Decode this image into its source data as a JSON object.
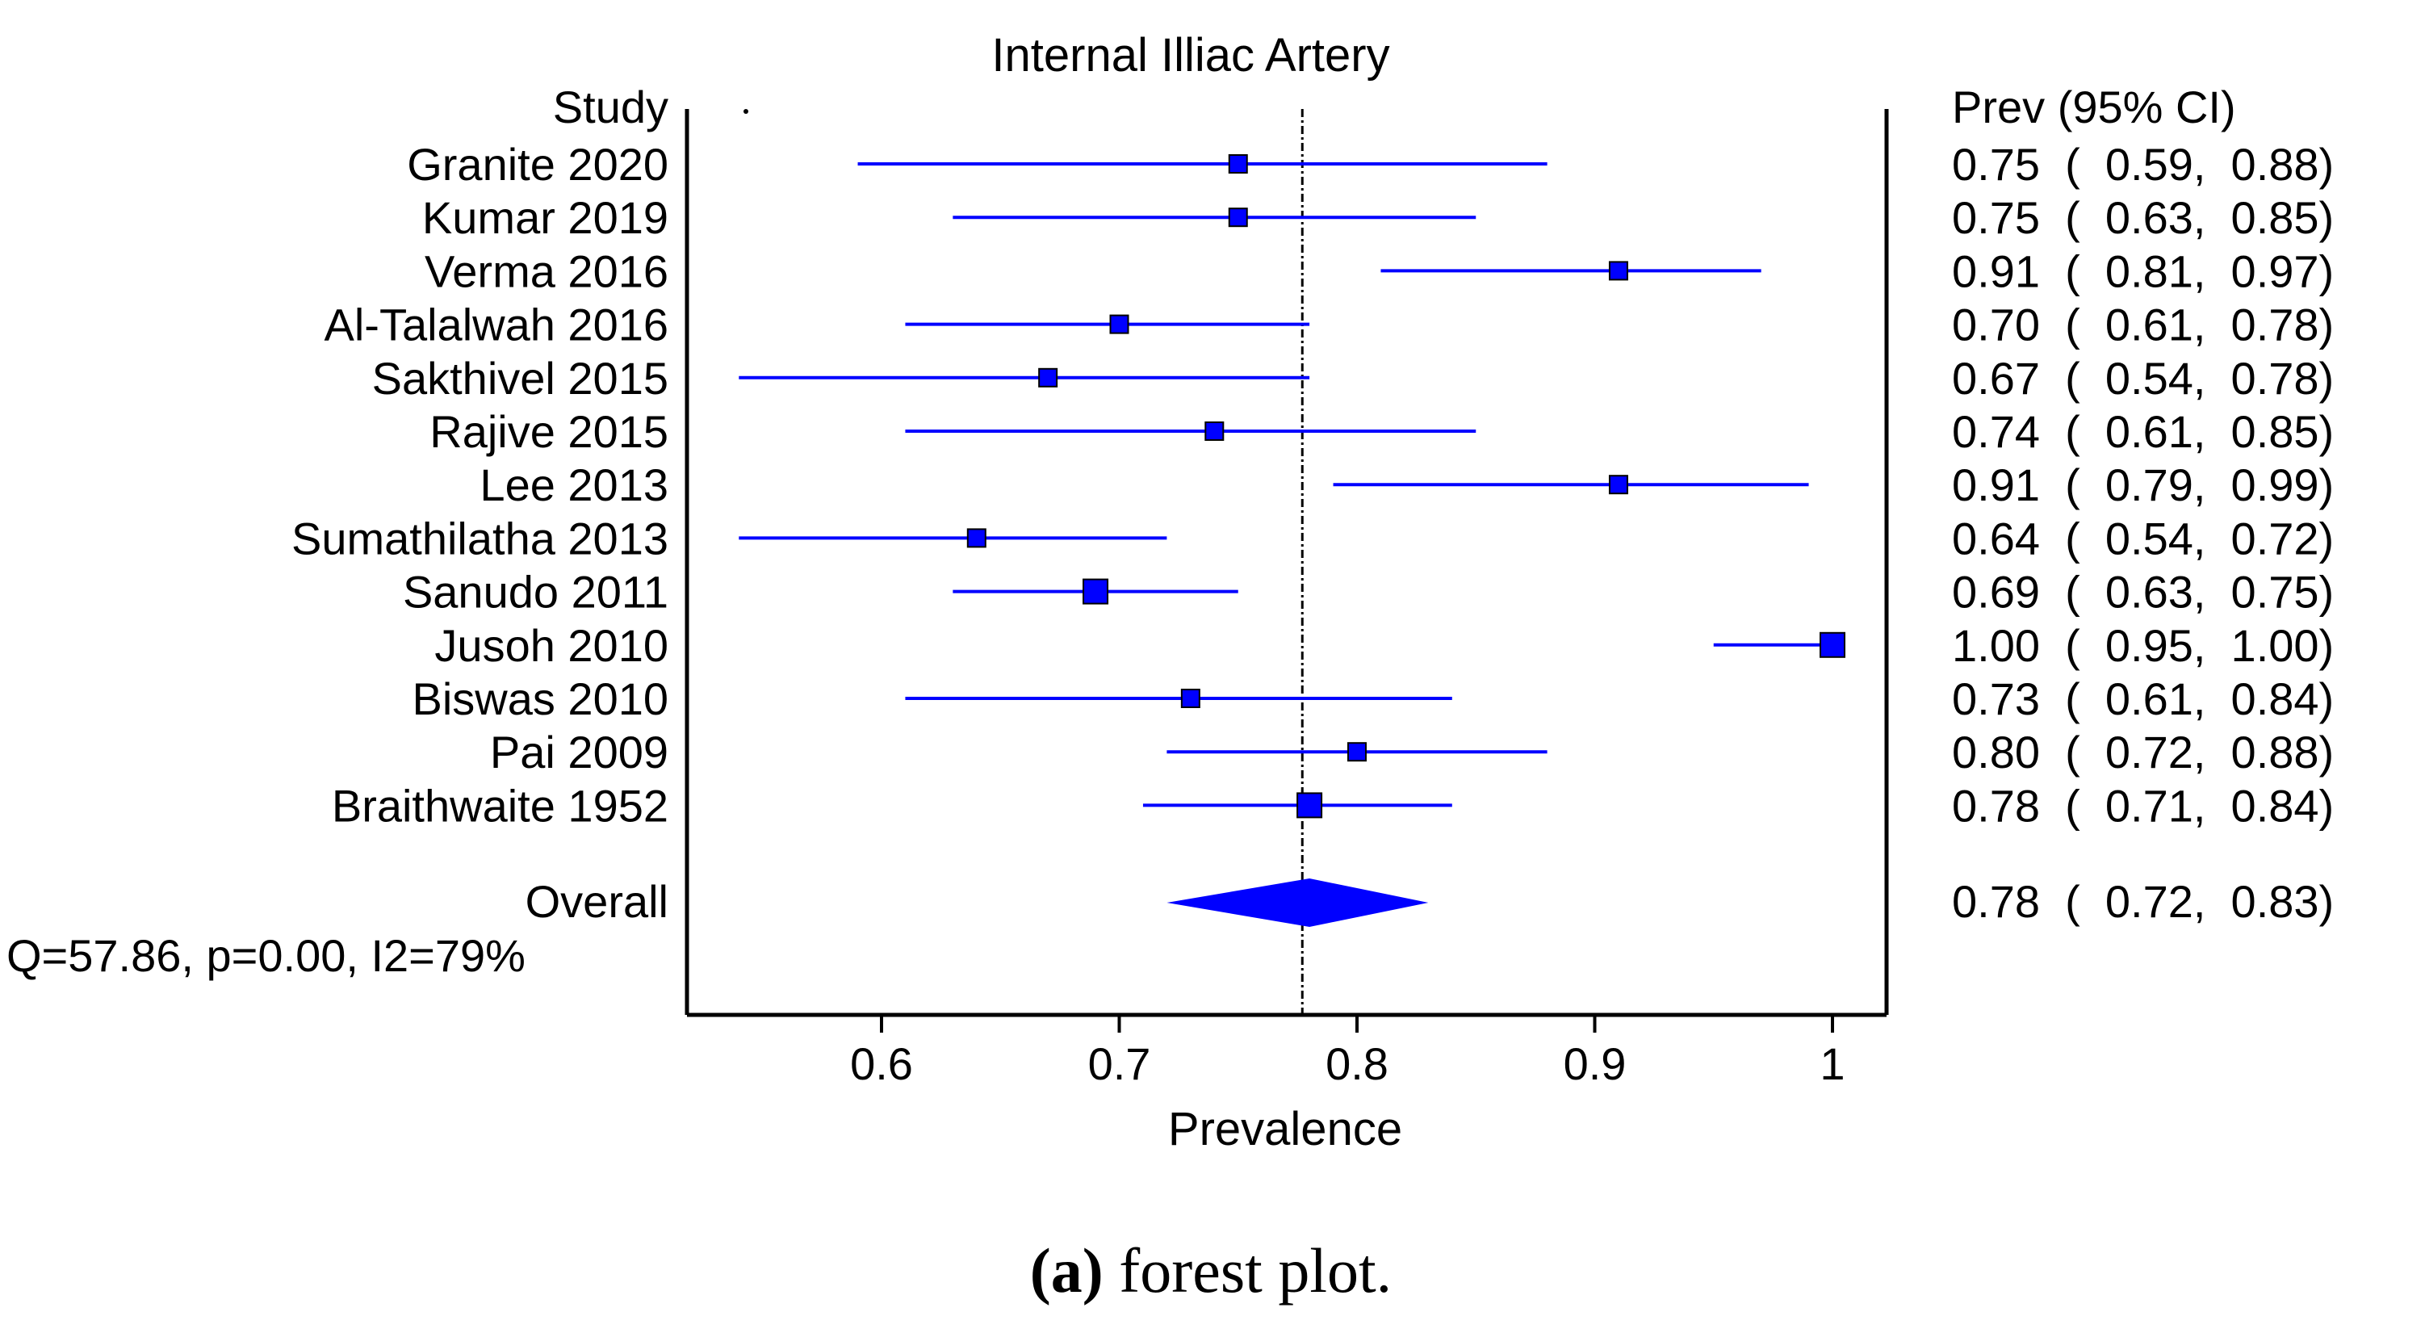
{
  "chart_data": {
    "type": "forest",
    "title": "Internal Illiac Artery",
    "left_header": "Study",
    "right_header": "Prev (95% CI)",
    "xlabel": "Prevalence",
    "xlim": [
      0.518,
      1.02
    ],
    "xticks": [
      0.6,
      0.7,
      0.8,
      0.9,
      1
    ],
    "xtick_labels": [
      "0.6",
      "0.7",
      "0.8",
      "0.9",
      "1"
    ],
    "reference_line": 0.777,
    "studies": [
      {
        "name": "Granite 2020",
        "est": 0.75,
        "lo": 0.59,
        "hi": 0.88,
        "label": "0.75  (  0.59,  0.88)"
      },
      {
        "name": "Kumar 2019",
        "est": 0.75,
        "lo": 0.63,
        "hi": 0.85,
        "label": "0.75  (  0.63,  0.85)"
      },
      {
        "name": "Verma 2016",
        "est": 0.91,
        "lo": 0.81,
        "hi": 0.97,
        "label": "0.91  (  0.81,  0.97)"
      },
      {
        "name": "Al-Talalwah 2016",
        "est": 0.7,
        "lo": 0.61,
        "hi": 0.78,
        "label": "0.70  (  0.61,  0.78)"
      },
      {
        "name": "Sakthivel 2015",
        "est": 0.67,
        "lo": 0.54,
        "hi": 0.78,
        "label": "0.67  (  0.54,  0.78)"
      },
      {
        "name": "Rajive 2015",
        "est": 0.74,
        "lo": 0.61,
        "hi": 0.85,
        "label": "0.74  (  0.61,  0.85)"
      },
      {
        "name": "Lee 2013",
        "est": 0.91,
        "lo": 0.79,
        "hi": 0.99,
        "label": "0.91  (  0.79,  0.99)"
      },
      {
        "name": "Sumathilatha 2013",
        "est": 0.64,
        "lo": 0.54,
        "hi": 0.72,
        "label": "0.64  (  0.54,  0.72)"
      },
      {
        "name": "Sanudo 2011",
        "est": 0.69,
        "lo": 0.63,
        "hi": 0.75,
        "label": "0.69  (  0.63,  0.75)"
      },
      {
        "name": "Jusoh 2010",
        "est": 1.0,
        "lo": 0.95,
        "hi": 1.0,
        "label": "1.00  (  0.95,  1.00)"
      },
      {
        "name": "Biswas 2010",
        "est": 0.73,
        "lo": 0.61,
        "hi": 0.84,
        "label": "0.73  (  0.61,  0.84)"
      },
      {
        "name": "Pai 2009",
        "est": 0.8,
        "lo": 0.72,
        "hi": 0.88,
        "label": "0.80  (  0.72,  0.88)"
      },
      {
        "name": "Braithwaite 1952",
        "est": 0.78,
        "lo": 0.71,
        "hi": 0.84,
        "label": "0.78  (  0.71,  0.84)"
      }
    ],
    "overall": {
      "name": "Overall",
      "est": 0.78,
      "lo": 0.72,
      "hi": 0.83,
      "label": "0.78  (  0.72,  0.83)"
    },
    "heterogeneity": "Q=57.86, p=0.00, I2=79%",
    "caption_bold": "(a)",
    "caption_text": " forest plot.",
    "colors": {
      "series": "#0000ff",
      "title": "#2020e0",
      "axis": "#000000"
    }
  }
}
